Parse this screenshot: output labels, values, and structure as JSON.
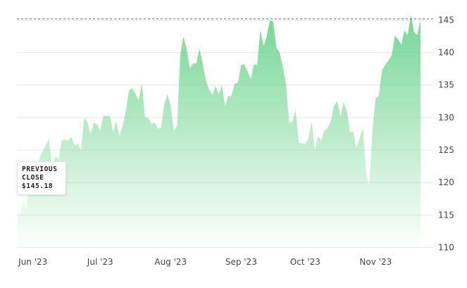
{
  "chart_data": {
    "type": "area",
    "color": "#6fd48f",
    "y_ticks": [
      110,
      115,
      120,
      125,
      130,
      135,
      140,
      145
    ],
    "ylim": [
      109.5,
      147.0
    ],
    "x_ticks": [
      {
        "label": "Jun '23",
        "index": 5
      },
      {
        "label": "Jul '23",
        "index": 26
      },
      {
        "label": "Aug '23",
        "index": 48
      },
      {
        "label": "Sep '23",
        "index": 70
      },
      {
        "label": "Oct '23",
        "index": 90
      },
      {
        "label": "Nov '23",
        "index": 112
      }
    ],
    "reference_line": {
      "value": 145.18,
      "style": "dashed"
    },
    "annotation": {
      "lines": [
        "PREVIOUS",
        "CLOSE",
        "$145.18"
      ]
    },
    "values": [
      115.0,
      115.2,
      117.1,
      116.0,
      120.5,
      121.8,
      122.3,
      123.5,
      124.8,
      125.6,
      126.7,
      122.0,
      124.1,
      123.6,
      126.5,
      126.6,
      126.4,
      127.0,
      125.7,
      126.0,
      125.0,
      129.9,
      129.3,
      127.4,
      129.2,
      129.0,
      127.9,
      130.3,
      130.2,
      130.3,
      127.8,
      129.4,
      127.2,
      128.7,
      131.0,
      134.2,
      134.5,
      133.7,
      132.6,
      135.3,
      130.0,
      130.0,
      129.0,
      129.2,
      128.3,
      128.4,
      132.0,
      133.6,
      131.8,
      128.0,
      128.7,
      139.6,
      142.4,
      140.5,
      137.6,
      138.3,
      138.3,
      140.6,
      138.3,
      135.7,
      134.3,
      133.5,
      134.8,
      133.6,
      134.9,
      131.8,
      133.3,
      133.3,
      135.2,
      135.4,
      138.1,
      138.2,
      137.1,
      135.9,
      138.2,
      138.1,
      143.4,
      141.0,
      142.5,
      145.0,
      144.7,
      140.8,
      140.0,
      137.9,
      135.2,
      129.2,
      129.3,
      131.1,
      126.1,
      126.0,
      126.0,
      126.7,
      129.3,
      125.0,
      127.1,
      126.4,
      128.0,
      128.4,
      129.4,
      131.8,
      132.5,
      130.1,
      132.4,
      131.0,
      127.7,
      127.8,
      125.3,
      126.8,
      128.4,
      121.5,
      119.5,
      128.0,
      133.0,
      133.3,
      137.3,
      138.1,
      138.8,
      139.6,
      142.6,
      142.0,
      141.2,
      143.4,
      142.6,
      145.8,
      143.1,
      142.7,
      145.0
    ]
  }
}
